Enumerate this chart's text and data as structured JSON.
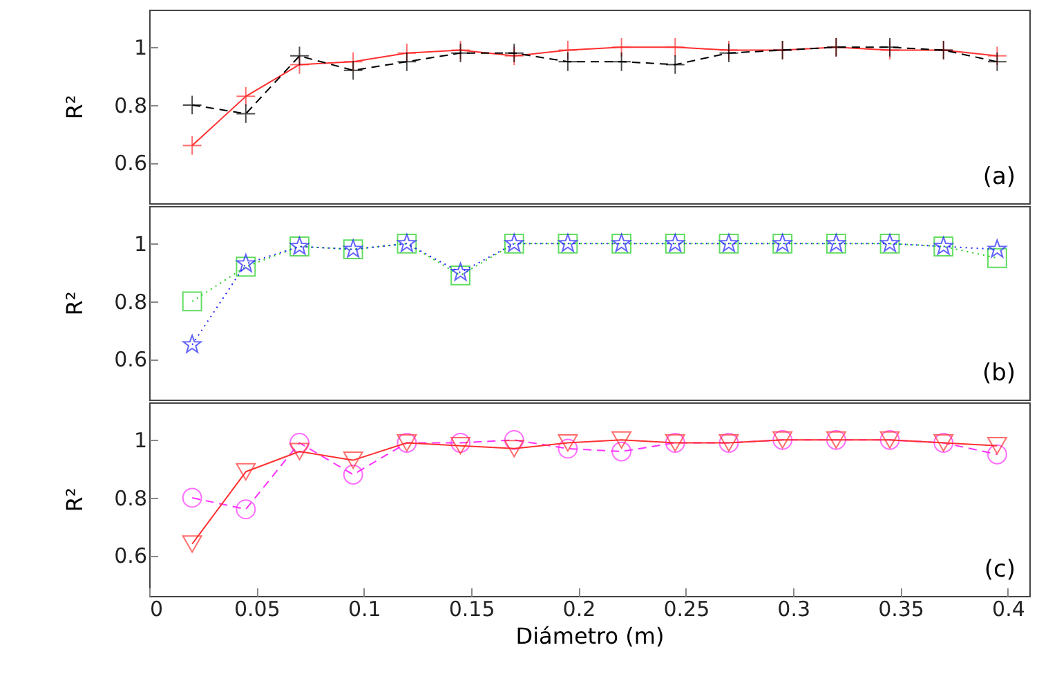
{
  "chart_data": [
    {
      "type": "line",
      "x": [
        0.02,
        0.045,
        0.07,
        0.095,
        0.12,
        0.145,
        0.17,
        0.195,
        0.22,
        0.245,
        0.27,
        0.295,
        0.32,
        0.345,
        0.37,
        0.395
      ],
      "ylabel": "R²",
      "xlim": [
        0,
        0.41
      ],
      "ylim": [
        0.46,
        1.13
      ],
      "yticks": [
        0.6,
        0.8,
        1
      ],
      "tick_labels": "y",
      "grid": false,
      "annotations": [
        "(a)"
      ],
      "series": [
        {
          "color": "#ff3030",
          "marker": "cross",
          "line_style": "solid",
          "values": [
            0.66,
            0.83,
            0.94,
            0.95,
            0.98,
            0.99,
            0.97,
            0.99,
            1.0,
            1.0,
            0.99,
            0.99,
            1.0,
            0.99,
            0.99,
            0.97
          ]
        },
        {
          "color": "#000000",
          "marker": "cross",
          "line_style": "dashed",
          "values": [
            0.8,
            0.77,
            0.97,
            0.92,
            0.95,
            0.98,
            0.98,
            0.95,
            0.95,
            0.94,
            0.98,
            0.99,
            1.0,
            1.0,
            0.99,
            0.95
          ]
        }
      ]
    },
    {
      "type": "line",
      "x": [
        0.02,
        0.045,
        0.07,
        0.095,
        0.12,
        0.145,
        0.17,
        0.195,
        0.22,
        0.245,
        0.27,
        0.295,
        0.32,
        0.345,
        0.37,
        0.395
      ],
      "ylabel": "R²",
      "xlim": [
        0,
        0.41
      ],
      "ylim": [
        0.46,
        1.13
      ],
      "yticks": [
        0.6,
        0.8,
        1
      ],
      "tick_labels": "y",
      "grid": false,
      "annotations": [
        "(b)"
      ],
      "series": [
        {
          "color": "#20d020",
          "marker": "square",
          "line_style": "dotted",
          "values": [
            0.8,
            0.92,
            0.99,
            0.98,
            1.0,
            0.89,
            1.0,
            1.0,
            1.0,
            1.0,
            1.0,
            1.0,
            1.0,
            1.0,
            0.99,
            0.95
          ]
        },
        {
          "color": "#2020ff",
          "marker": "star",
          "line_style": "dotted",
          "values": [
            0.65,
            0.93,
            0.99,
            0.98,
            1.0,
            0.9,
            1.0,
            1.0,
            1.0,
            1.0,
            1.0,
            1.0,
            1.0,
            1.0,
            0.99,
            0.98
          ]
        }
      ]
    },
    {
      "type": "line",
      "x": [
        0.02,
        0.045,
        0.07,
        0.095,
        0.12,
        0.145,
        0.17,
        0.195,
        0.22,
        0.245,
        0.27,
        0.295,
        0.32,
        0.345,
        0.37,
        0.395
      ],
      "xlabel": "Diámetro (m)",
      "ylabel": "R²",
      "xlim": [
        0,
        0.41
      ],
      "xticks": [
        0,
        0.05,
        0.1,
        0.15,
        0.2,
        0.25,
        0.3,
        0.35,
        0.4
      ],
      "ylim": [
        0.46,
        1.13
      ],
      "yticks": [
        0.6,
        0.8,
        1
      ],
      "grid": false,
      "annotations": [
        "(c)"
      ],
      "series": [
        {
          "color": "#ff30ff",
          "marker": "circle",
          "line_style": "dashed",
          "values": [
            0.8,
            0.76,
            0.99,
            0.88,
            0.99,
            0.99,
            1.0,
            0.97,
            0.96,
            0.99,
            0.99,
            1.0,
            1.0,
            1.0,
            0.99,
            0.95
          ]
        },
        {
          "color": "#ff3030",
          "marker": "triangle",
          "line_style": "solid",
          "values": [
            0.64,
            0.89,
            0.96,
            0.93,
            0.99,
            0.98,
            0.97,
            0.99,
            1.0,
            0.99,
            0.99,
            1.0,
            1.0,
            1.0,
            0.99,
            0.98
          ]
        }
      ]
    }
  ]
}
